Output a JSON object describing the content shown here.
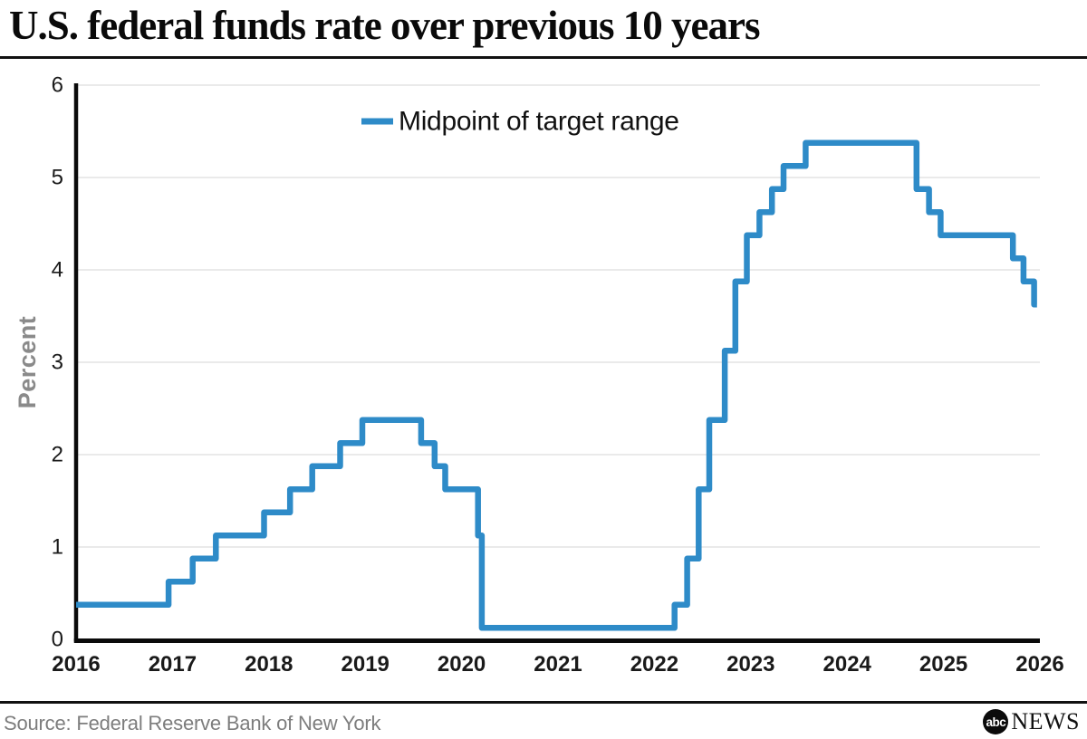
{
  "page": {
    "title": "U.S. federal funds rate over previous 10 years",
    "source": "Source: Federal Reserve Bank of New York",
    "logo": {
      "abc": "abc",
      "news": "NEWS"
    }
  },
  "colors": {
    "line": "#2e8bc8",
    "grid": "#e3e3e3",
    "axis": "#0a0a0a",
    "tick_label": "#1a1a1a",
    "axis_title_gray": "#8a8a8a",
    "source_gray": "#7d7d7d",
    "legend_text": "#111111"
  },
  "chart_data": {
    "type": "line",
    "style": "step-post",
    "title": "U.S. federal funds rate over previous 10 years",
    "xlabel": "",
    "ylabel": "Percent",
    "xlim": [
      2016,
      2026
    ],
    "ylim": [
      0,
      6
    ],
    "x_ticks": [
      2016,
      2017,
      2018,
      2019,
      2020,
      2021,
      2022,
      2023,
      2024,
      2025,
      2026
    ],
    "x_tick_labels": [
      "2016",
      "2017",
      "2018",
      "2019",
      "2020",
      "2021",
      "2022",
      "2023",
      "2024",
      "2025",
      "2026"
    ],
    "y_ticks": [
      0,
      1,
      2,
      3,
      4,
      5,
      6
    ],
    "y_tick_labels": [
      "0",
      "1",
      "2",
      "3",
      "4",
      "5",
      "6"
    ],
    "grid": "horizontal",
    "legend": [
      "Midpoint of target range"
    ],
    "legend_position": "top-center",
    "x_end": 2025.97,
    "series": [
      {
        "name": "Midpoint of target range",
        "color": "#2e8bc8",
        "points": [
          [
            2016.0,
            0.375
          ],
          [
            2016.96,
            0.625
          ],
          [
            2017.21,
            0.875
          ],
          [
            2017.45,
            1.125
          ],
          [
            2017.95,
            1.375
          ],
          [
            2018.22,
            1.625
          ],
          [
            2018.45,
            1.875
          ],
          [
            2018.74,
            2.125
          ],
          [
            2018.97,
            2.375
          ],
          [
            2019.58,
            2.125
          ],
          [
            2019.72,
            1.875
          ],
          [
            2019.83,
            1.625
          ],
          [
            2020.17,
            1.125
          ],
          [
            2020.21,
            0.125
          ],
          [
            2022.21,
            0.375
          ],
          [
            2022.34,
            0.875
          ],
          [
            2022.46,
            1.625
          ],
          [
            2022.57,
            2.375
          ],
          [
            2022.73,
            3.125
          ],
          [
            2022.84,
            3.875
          ],
          [
            2022.96,
            4.375
          ],
          [
            2023.09,
            4.625
          ],
          [
            2023.22,
            4.875
          ],
          [
            2023.34,
            5.125
          ],
          [
            2023.57,
            5.375
          ],
          [
            2024.72,
            4.875
          ],
          [
            2024.85,
            4.625
          ],
          [
            2024.97,
            4.375
          ],
          [
            2025.72,
            4.125
          ],
          [
            2025.83,
            3.875
          ],
          [
            2025.94,
            3.625
          ]
        ]
      }
    ]
  }
}
